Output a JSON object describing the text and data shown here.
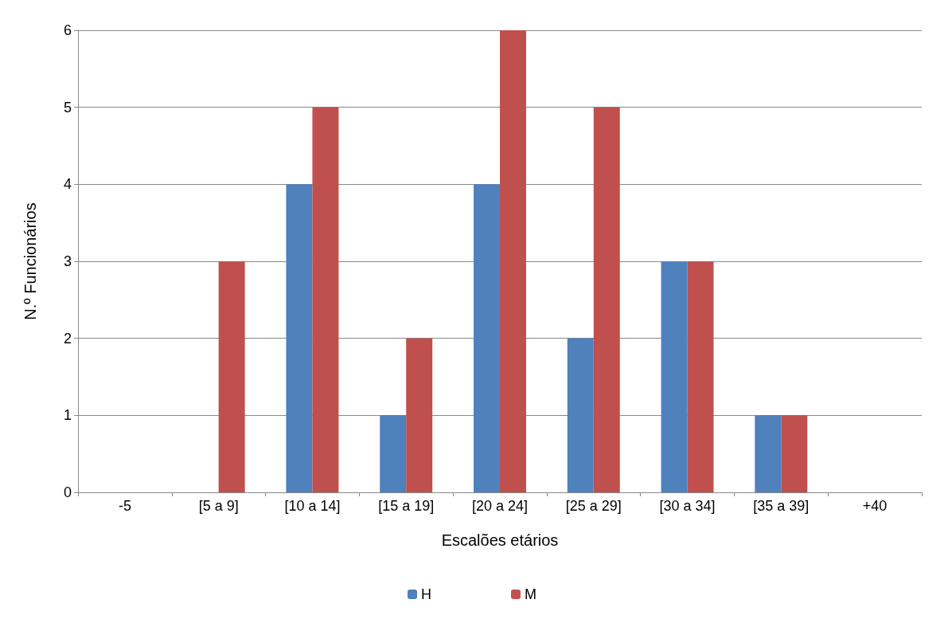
{
  "chart_data": {
    "type": "bar",
    "xlabel": "Escalões etários",
    "ylabel": "N.º Funcionários",
    "categories": [
      "-5",
      "[5 a 9]",
      "[10 a 14]",
      "[15 a 19]",
      "[20 a 24]",
      "[25 a 29]",
      "[30 a 34]",
      "[35 a 39]",
      "+40"
    ],
    "series": [
      {
        "name": "H",
        "color": "#4f81bd",
        "values": [
          0,
          0,
          4,
          1,
          4,
          2,
          3,
          1,
          0
        ]
      },
      {
        "name": "M",
        "color": "#c0504d",
        "values": [
          0,
          3,
          5,
          2,
          6,
          5,
          3,
          1,
          0
        ]
      }
    ],
    "ylim": [
      0,
      6
    ],
    "yticks": [
      0,
      1,
      2,
      3,
      4,
      5,
      6
    ],
    "grid": "y",
    "legend": "bottom"
  }
}
